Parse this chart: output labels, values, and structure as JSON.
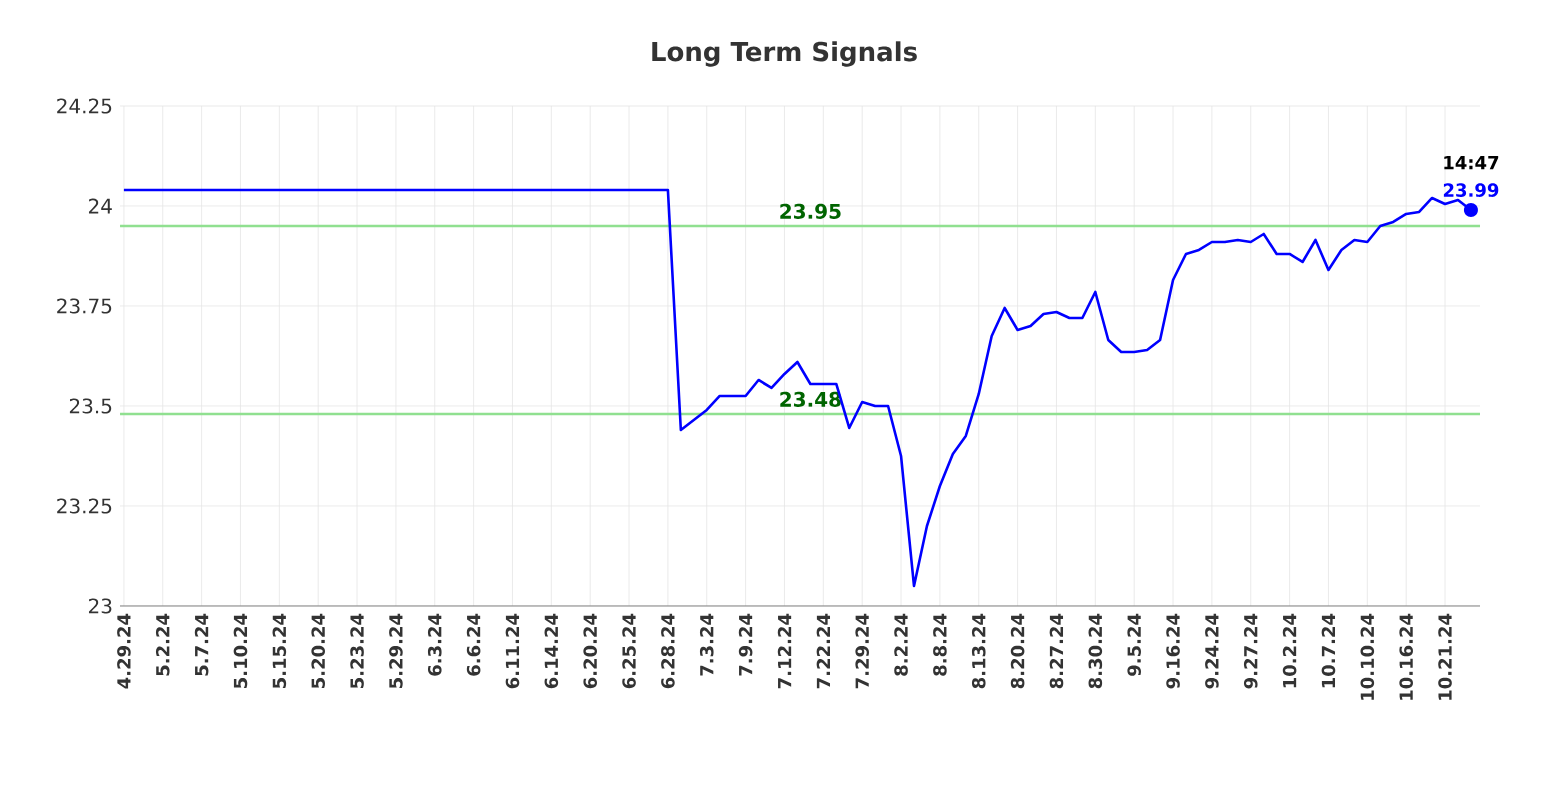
{
  "chart_data": {
    "type": "line",
    "title": "Long Term Signals",
    "categories": [
      "4.29.24",
      null,
      null,
      "5.2.24",
      null,
      null,
      "5.7.24",
      null,
      null,
      "5.10.24",
      null,
      null,
      "5.15.24",
      null,
      null,
      "5.20.24",
      null,
      null,
      "5.23.24",
      null,
      null,
      "5.29.24",
      null,
      null,
      "6.3.24",
      null,
      null,
      "6.6.24",
      null,
      null,
      "6.11.24",
      null,
      null,
      "6.14.24",
      null,
      null,
      "6.20.24",
      null,
      null,
      "6.25.24",
      null,
      null,
      "6.28.24",
      null,
      null,
      "7.3.24",
      null,
      null,
      "7.9.24",
      null,
      null,
      "7.12.24",
      null,
      null,
      "7.22.24",
      null,
      null,
      "7.29.24",
      null,
      null,
      "8.2.24",
      null,
      null,
      "8.8.24",
      null,
      null,
      "8.13.24",
      null,
      null,
      "8.20.24",
      null,
      null,
      "8.27.24",
      null,
      null,
      "8.30.24",
      null,
      null,
      "9.5.24",
      null,
      null,
      "9.16.24",
      null,
      null,
      "9.24.24",
      null,
      null,
      "9.27.24",
      null,
      null,
      "10.2.24",
      null,
      null,
      "10.7.24",
      null,
      null,
      "10.10.24",
      null,
      null,
      "10.16.24",
      null,
      null,
      "10.21.24",
      null,
      null
    ],
    "series": [
      {
        "color": "#0000ff",
        "values": [
          24.04,
          24.04,
          24.04,
          24.04,
          24.04,
          24.04,
          24.04,
          24.04,
          24.04,
          24.04,
          24.04,
          24.04,
          24.04,
          24.04,
          24.04,
          24.04,
          24.04,
          24.04,
          24.04,
          24.04,
          24.04,
          24.04,
          24.04,
          24.04,
          24.04,
          24.04,
          24.04,
          24.04,
          24.04,
          24.04,
          24.04,
          24.04,
          24.04,
          24.04,
          24.04,
          24.04,
          24.04,
          24.04,
          24.04,
          24.04,
          24.04,
          24.04,
          24.04,
          23.44,
          23.465,
          23.49,
          23.525,
          23.525,
          23.525,
          23.565,
          23.545,
          23.58,
          23.61,
          23.555,
          23.555,
          23.555,
          23.445,
          23.51,
          23.5,
          23.5,
          23.375,
          23.05,
          23.2,
          23.3,
          23.38,
          23.425,
          23.53,
          23.675,
          23.745,
          23.69,
          23.7,
          23.73,
          23.735,
          23.72,
          23.72,
          23.785,
          23.665,
          23.635,
          23.635,
          23.64,
          23.665,
          23.815,
          23.88,
          23.89,
          23.91,
          23.91,
          23.915,
          23.91,
          23.93,
          23.88,
          23.88,
          23.86,
          23.915,
          23.84,
          23.89,
          23.915,
          23.91,
          23.95,
          23.96,
          23.98,
          23.985,
          24.02,
          24.005,
          24.015,
          23.99
        ]
      }
    ],
    "ylim": [
      23,
      24.25
    ],
    "yticks": [
      23,
      23.25,
      23.5,
      23.75,
      24,
      24.25
    ],
    "grid": true,
    "marker": "none",
    "line_style": "solid",
    "ref_lines": [
      {
        "axis": "y",
        "value": 23.95,
        "label": "23.95",
        "color": "#90e090"
      },
      {
        "axis": "y",
        "value": 23.48,
        "label": "23.48",
        "color": "#90e090"
      }
    ],
    "annotations": [
      "14:47",
      {
        "text": "23.99",
        "y": 23.99
      }
    ]
  }
}
